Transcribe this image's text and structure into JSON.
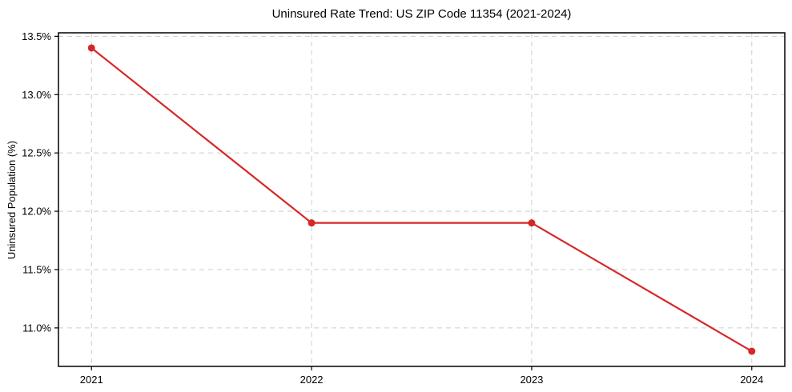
{
  "chart_data": {
    "type": "line",
    "title": "Uninsured Rate Trend: US ZIP Code 11354 (2021-2024)",
    "xlabel": "",
    "ylabel": "Uninsured Population (%)",
    "x": [
      2021,
      2022,
      2023,
      2024
    ],
    "series": [
      {
        "name": "Uninsured rate",
        "values": [
          13.4,
          11.9,
          11.9,
          10.8
        ],
        "color": "#d62728",
        "marker": "circle",
        "line_width": 2.2,
        "marker_radius": 4.5
      }
    ],
    "xlim": [
      2020.85,
      2024.15
    ],
    "ylim": [
      10.67,
      13.53
    ],
    "xticks": [
      2021,
      2022,
      2023,
      2024
    ],
    "xtick_labels": [
      "2021",
      "2022",
      "2023",
      "2024"
    ],
    "yticks": [
      11.0,
      11.5,
      12.0,
      12.5,
      13.0,
      13.5
    ],
    "ytick_labels": [
      "11.0%",
      "11.5%",
      "12.0%",
      "12.5%",
      "13.0%",
      "13.5%"
    ],
    "grid": true,
    "grid_style": "dashed",
    "grid_color": "#cdcdcd",
    "spine_color": "#000000",
    "text_color": "#000000",
    "background": "#ffffff",
    "legend": null
  }
}
